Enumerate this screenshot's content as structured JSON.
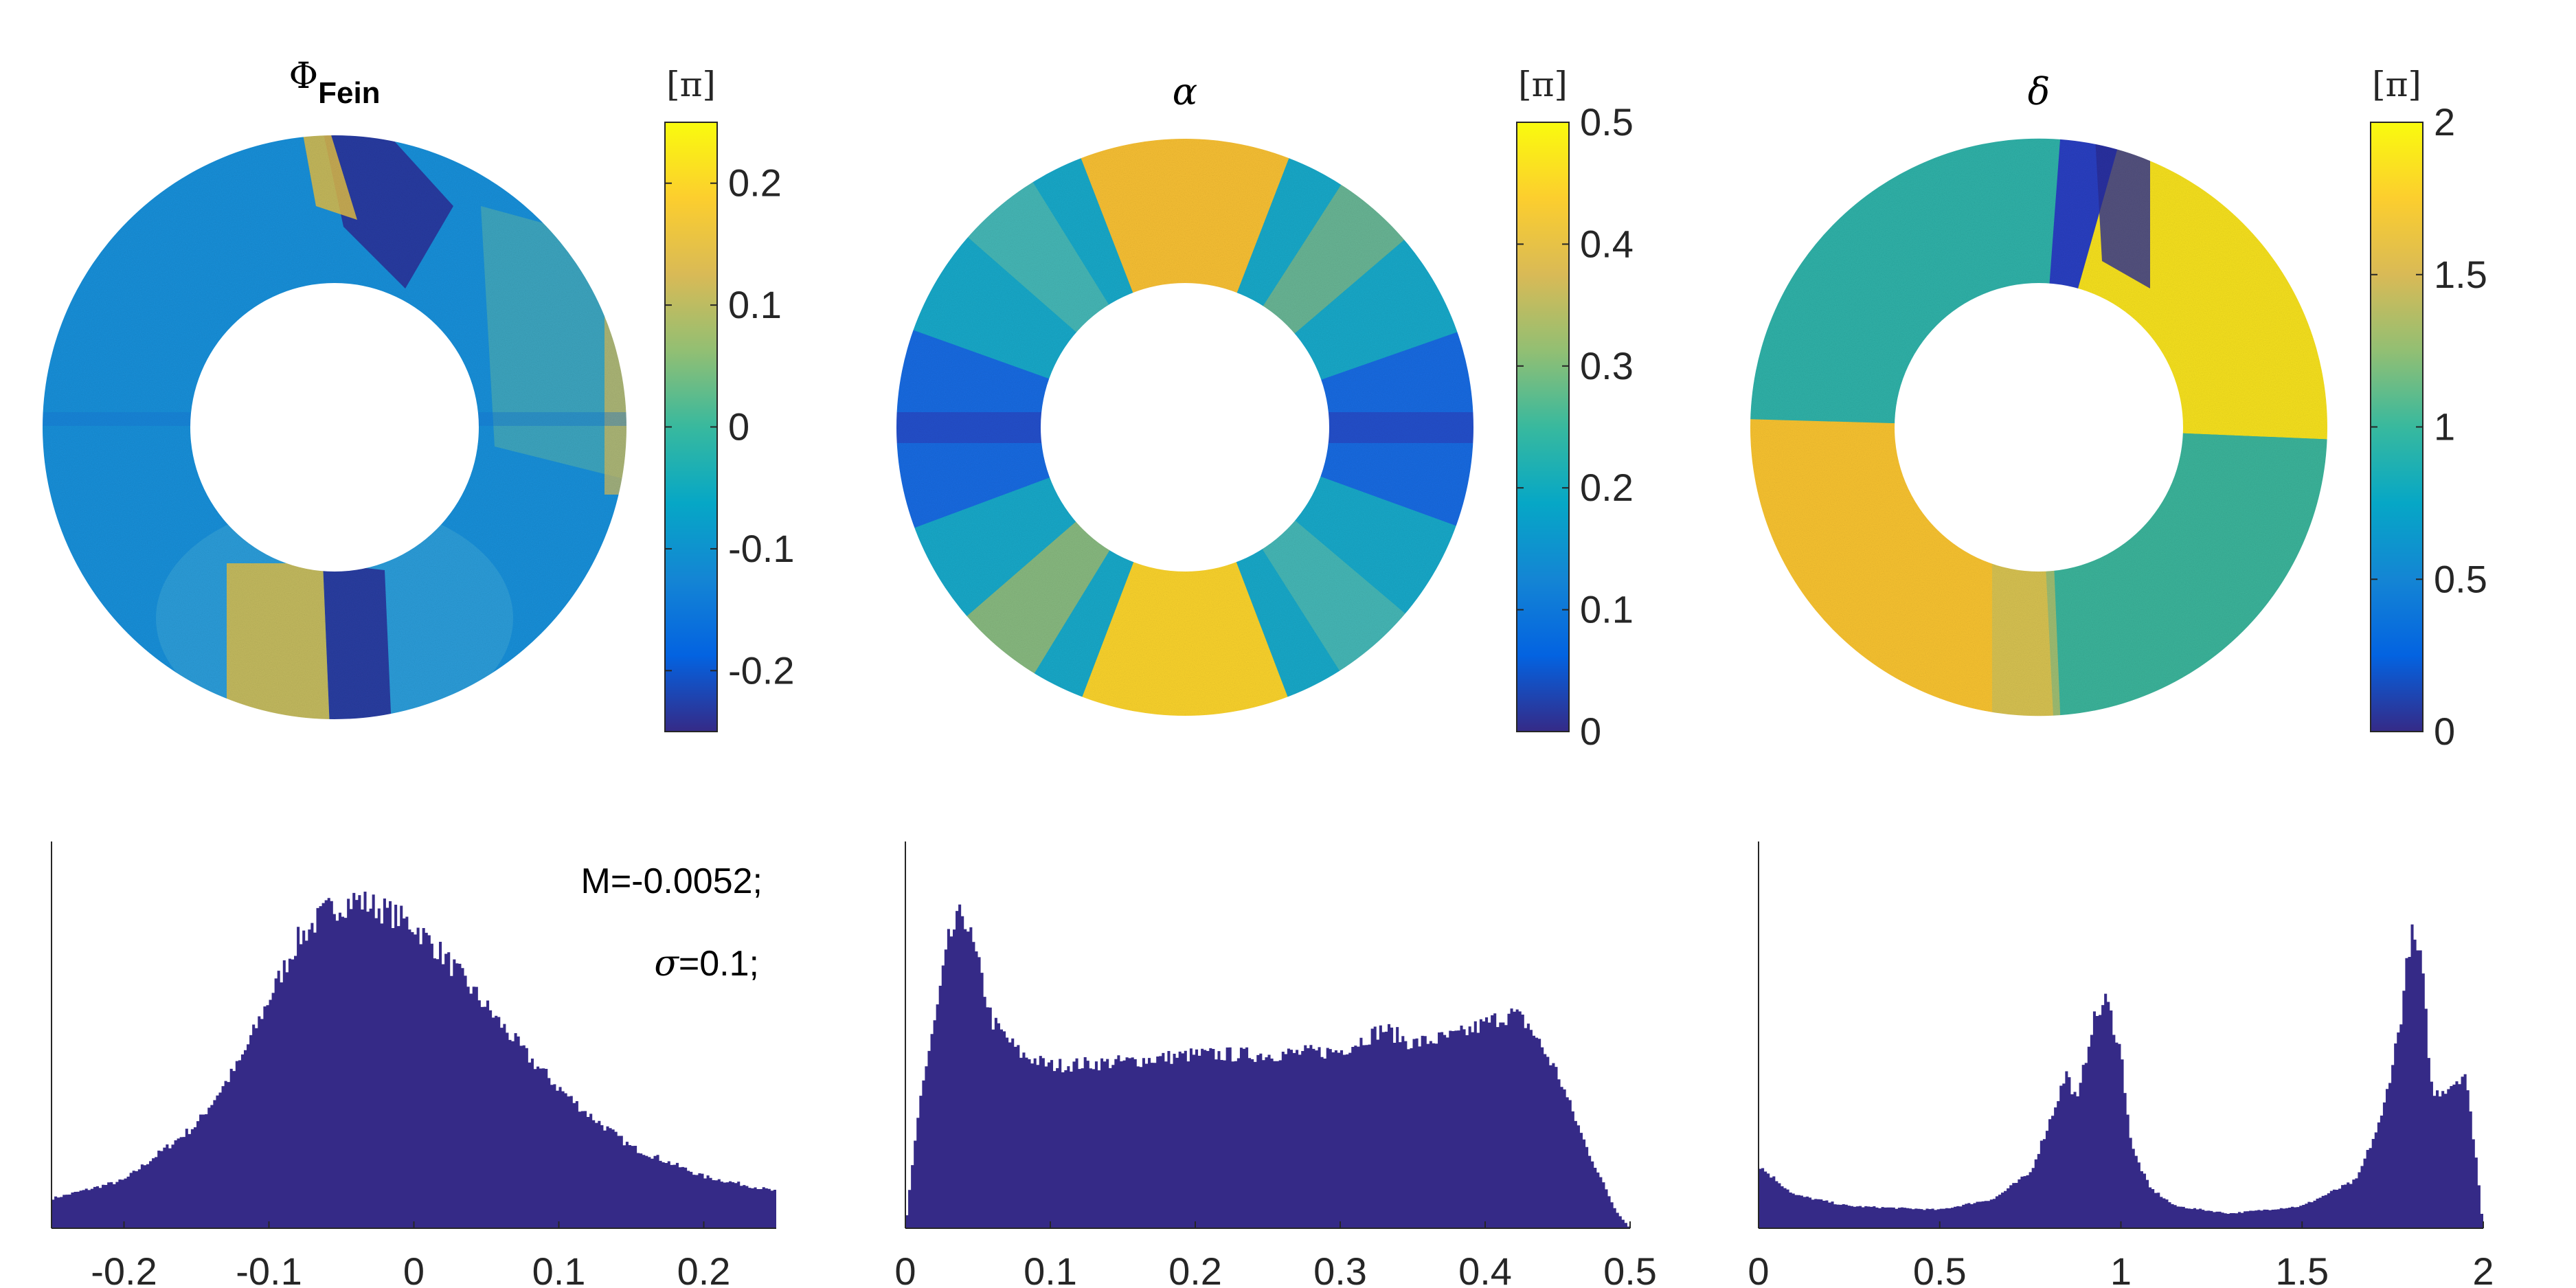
{
  "figure": {
    "panels": [
      {
        "id": "phi_fein",
        "title_symbol": "Φ",
        "title_subscript": "Fein",
        "colorbar": {
          "unit": "[π]",
          "range": [
            -0.25,
            0.25
          ],
          "ticks": [
            -0.2,
            -0.1,
            0,
            0.1,
            0.2
          ],
          "tick_labels": [
            "-0.2",
            "-0.1",
            "0",
            "0.1",
            "0.2"
          ]
        }
      },
      {
        "id": "alpha",
        "title_symbol": "α",
        "title_subscript": "",
        "colorbar": {
          "unit": "[π]",
          "range": [
            0,
            0.5
          ],
          "ticks": [
            0,
            0.1,
            0.2,
            0.3,
            0.4,
            0.5
          ],
          "tick_labels": [
            "0",
            "0.1",
            "0.2",
            "0.3",
            "0.4",
            "0.5"
          ]
        }
      },
      {
        "id": "delta",
        "title_symbol": "δ",
        "title_subscript": "",
        "colorbar": {
          "unit": "[π]",
          "range": [
            0,
            2
          ],
          "ticks": [
            0,
            0.5,
            1,
            1.5,
            2
          ],
          "tick_labels": [
            "0",
            "0.5",
            "1",
            "1.5",
            "2"
          ]
        }
      }
    ],
    "annotation": {
      "mean_text": "M=-0.0052;",
      "sigma_symbol": "σ",
      "sigma_text": "=0.1;"
    },
    "colors": {
      "hist_fill": "#352a87",
      "axis": "#262626",
      "colormap": [
        "#352a87",
        "#0363e1",
        "#1485d4",
        "#06a7c6",
        "#38b99e",
        "#92bf73",
        "#d9ba56",
        "#fcce2e",
        "#f9fb0e"
      ]
    }
  },
  "chart_data": [
    {
      "type": "histogram",
      "title": "",
      "xlim": [
        -0.25,
        0.25
      ],
      "x_ticks": [
        -0.2,
        -0.1,
        0,
        0.1,
        0.2
      ],
      "x_tick_labels": [
        "-0.2",
        "-0.1",
        "0",
        "0.1",
        "0.2"
      ],
      "y_relative_density": {
        "x": [
          -0.25,
          -0.2,
          -0.15,
          -0.12,
          -0.1,
          -0.08,
          -0.06,
          -0.04,
          -0.02,
          0,
          0.02,
          0.05,
          0.08,
          0.1,
          0.12,
          0.15,
          0.2,
          0.25
        ],
        "y": [
          0.08,
          0.13,
          0.28,
          0.45,
          0.62,
          0.78,
          0.86,
          0.89,
          0.86,
          0.82,
          0.74,
          0.6,
          0.46,
          0.38,
          0.31,
          0.22,
          0.14,
          0.1
        ]
      },
      "stats": {
        "mean": -0.0052,
        "sigma": 0.1
      }
    },
    {
      "type": "histogram",
      "title": "",
      "xlim": [
        0,
        0.5
      ],
      "x_ticks": [
        0,
        0.1,
        0.2,
        0.3,
        0.4,
        0.5
      ],
      "x_tick_labels": [
        "0",
        "0.1",
        "0.2",
        "0.3",
        "0.4",
        "0.5"
      ],
      "y_relative_density": {
        "x": [
          0,
          0.01,
          0.02,
          0.03,
          0.04,
          0.05,
          0.06,
          0.08,
          0.1,
          0.15,
          0.2,
          0.25,
          0.3,
          0.32,
          0.33,
          0.35,
          0.38,
          0.41,
          0.42,
          0.43,
          0.45,
          0.47,
          0.49,
          0.5
        ],
        "y": [
          0.0,
          0.35,
          0.55,
          0.78,
          0.86,
          0.72,
          0.56,
          0.47,
          0.44,
          0.45,
          0.47,
          0.47,
          0.48,
          0.52,
          0.54,
          0.5,
          0.52,
          0.57,
          0.58,
          0.55,
          0.42,
          0.22,
          0.05,
          0.0
        ]
      }
    },
    {
      "type": "histogram",
      "title": "",
      "xlim": [
        0,
        2
      ],
      "x_ticks": [
        0,
        0.5,
        1,
        1.5,
        2
      ],
      "x_tick_labels": [
        "0",
        "0.5",
        "1",
        "1.5",
        "2"
      ],
      "y_relative_density": {
        "x": [
          0,
          0.1,
          0.25,
          0.5,
          0.65,
          0.75,
          0.8,
          0.85,
          0.88,
          0.92,
          0.96,
          1.0,
          1.03,
          1.08,
          1.15,
          1.3,
          1.5,
          1.65,
          1.72,
          1.77,
          1.8,
          1.83,
          1.86,
          1.9,
          1.95,
          1.98,
          2.0
        ],
        "y": [
          0.17,
          0.09,
          0.06,
          0.05,
          0.08,
          0.15,
          0.28,
          0.42,
          0.34,
          0.55,
          0.62,
          0.48,
          0.22,
          0.11,
          0.06,
          0.04,
          0.06,
          0.13,
          0.3,
          0.55,
          0.8,
          0.72,
          0.36,
          0.38,
          0.42,
          0.2,
          0.0
        ]
      }
    }
  ]
}
